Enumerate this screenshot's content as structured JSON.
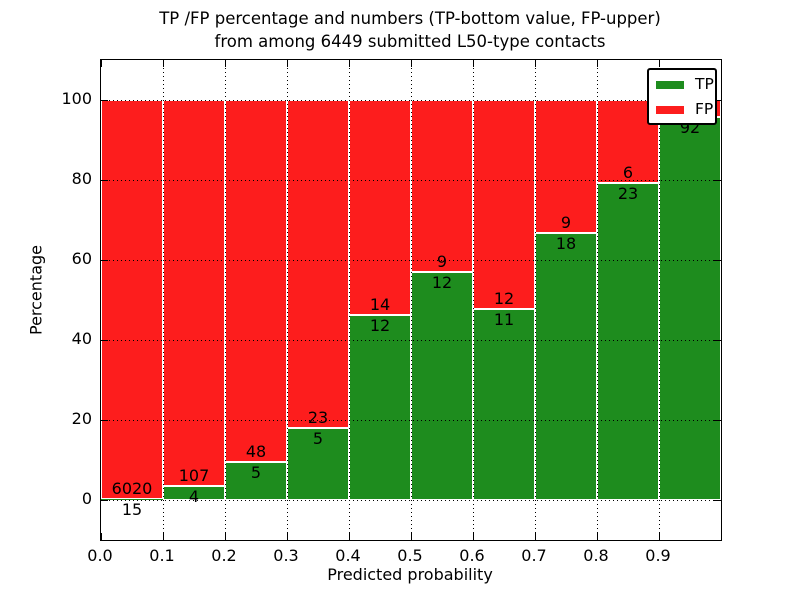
{
  "title": {
    "line1": "TP /FP percentage and numbers (TP-bottom value, FP-upper)",
    "line2": "from among 6449 submitted L50-type contacts"
  },
  "colors": {
    "tp": "#1e8c1e",
    "fp": "#fd1d1d",
    "text": "#000000",
    "background": "#ffffff",
    "grid": "#000000",
    "bar_edge": "#ffffff",
    "legend_border": "#000000"
  },
  "legend": {
    "entries": [
      {
        "label": "TP",
        "series": "tp"
      },
      {
        "label": "FP",
        "series": "fp"
      }
    ]
  },
  "chart_data": {
    "type": "bar",
    "stacked": true,
    "title": "TP /FP percentage and numbers (TP-bottom value, FP-upper) from among 6449 submitted L50-type contacts",
    "xlabel": "Predicted probability",
    "ylabel": "Percentage",
    "xlim": [
      0.0,
      1.0
    ],
    "ylim": [
      -10,
      110
    ],
    "x_ticks": [
      "0.0",
      "0.1",
      "0.2",
      "0.3",
      "0.4",
      "0.5",
      "0.6",
      "0.7",
      "0.8",
      "0.9"
    ],
    "y_ticks": [
      "0",
      "20",
      "40",
      "60",
      "80",
      "100"
    ],
    "grid": "dotted",
    "legend_position": "upper-right",
    "bin_width": 0.1,
    "bins": [
      {
        "x_range": [
          0.0,
          0.1
        ],
        "tp_count": 15,
        "fp_count": 6020,
        "tp_pct": 0.25,
        "fp_pct": 99.75
      },
      {
        "x_range": [
          0.1,
          0.2
        ],
        "tp_count": 4,
        "fp_count": 107,
        "tp_pct": 3.6,
        "fp_pct": 96.4
      },
      {
        "x_range": [
          0.2,
          0.3
        ],
        "tp_count": 5,
        "fp_count": 48,
        "tp_pct": 9.4,
        "fp_pct": 90.6
      },
      {
        "x_range": [
          0.3,
          0.4
        ],
        "tp_count": 5,
        "fp_count": 23,
        "tp_pct": 17.9,
        "fp_pct": 82.1
      },
      {
        "x_range": [
          0.4,
          0.5
        ],
        "tp_count": 12,
        "fp_count": 14,
        "tp_pct": 46.2,
        "fp_pct": 53.8
      },
      {
        "x_range": [
          0.5,
          0.6
        ],
        "tp_count": 12,
        "fp_count": 9,
        "tp_pct": 57.1,
        "fp_pct": 42.9
      },
      {
        "x_range": [
          0.6,
          0.7
        ],
        "tp_count": 11,
        "fp_count": 12,
        "tp_pct": 47.8,
        "fp_pct": 52.2
      },
      {
        "x_range": [
          0.7,
          0.8
        ],
        "tp_count": 18,
        "fp_count": 9,
        "tp_pct": 66.7,
        "fp_pct": 33.3
      },
      {
        "x_range": [
          0.8,
          0.9
        ],
        "tp_count": 23,
        "fp_count": 6,
        "tp_pct": 79.3,
        "fp_pct": 20.7
      },
      {
        "x_range": [
          0.9,
          1.0
        ],
        "tp_count": 92,
        "fp_count": null,
        "tp_pct": 95.8,
        "fp_pct": 4.2
      }
    ]
  }
}
